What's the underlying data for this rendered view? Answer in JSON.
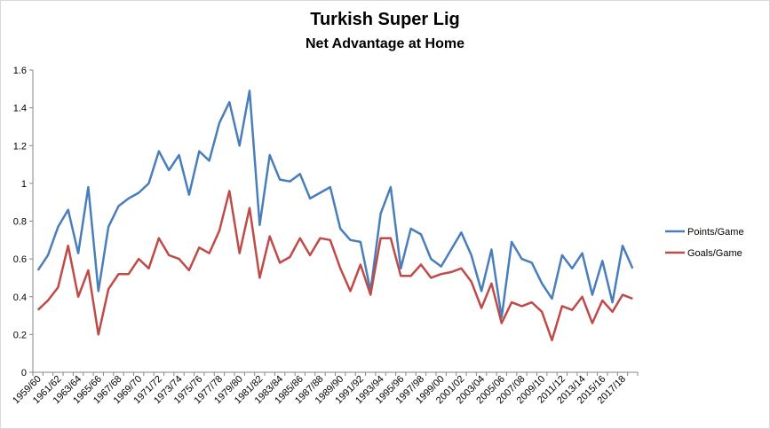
{
  "chart_data": {
    "type": "line",
    "title": "Turkish Super Lig",
    "subtitle": "Net Advantage at Home",
    "xlabel": "",
    "ylabel": "",
    "ylim": [
      0,
      1.6
    ],
    "yticks": [
      "0",
      "0.2",
      "0.4",
      "0.6",
      "0.8",
      "1",
      "1.2",
      "1.4",
      "1.6"
    ],
    "grid": false,
    "legend_position": "right",
    "x": [
      "1959/60",
      "1960/61",
      "1961/62",
      "1962/63",
      "1963/64",
      "1964/65",
      "1965/66",
      "1966/67",
      "1967/68",
      "1968/69",
      "1969/70",
      "1970/71",
      "1971/72",
      "1972/73",
      "1973/74",
      "1974/75",
      "1975/76",
      "1976/77",
      "1977/78",
      "1978/79",
      "1979/80",
      "1980/81",
      "1981/82",
      "1982/83",
      "1983/84",
      "1984/85",
      "1985/86",
      "1986/87",
      "1987/88",
      "1988/89",
      "1989/90",
      "1990/91",
      "1991/92",
      "1992/93",
      "1993/94",
      "1994/95",
      "1995/96",
      "1996/97",
      "1997/98",
      "1998/99",
      "1999/00",
      "2000/01",
      "2001/02",
      "2002/03",
      "2003/04",
      "2004/05",
      "2005/06",
      "2006/07",
      "2007/08",
      "2008/09",
      "2009/10",
      "2010/11",
      "2011/12",
      "2012/13",
      "2013/14",
      "2014/15",
      "2015/16",
      "2016/17",
      "2017/18",
      "2018/19"
    ],
    "x_tick_labels": [
      "1959/60",
      "1961/62",
      "1963/64",
      "1965/66",
      "1967/68",
      "1969/70",
      "1971/72",
      "1973/74",
      "1975/76",
      "1977/78",
      "1979/80",
      "1981/82",
      "1983/84",
      "1985/86",
      "1987/88",
      "1989/90",
      "1991/92",
      "1993/94",
      "1995/96",
      "1997/98",
      "1999/00",
      "2001/02",
      "2003/04",
      "2005/06",
      "2007/08",
      "2009/10",
      "2011/12",
      "2013/14",
      "2015/16",
      "2017/18"
    ],
    "series": [
      {
        "name": "Points/Game",
        "color": "#4a7ebb",
        "values": [
          0.54,
          0.62,
          0.77,
          0.86,
          0.63,
          0.98,
          0.43,
          0.77,
          0.88,
          0.92,
          0.95,
          1.0,
          1.17,
          1.07,
          1.15,
          0.94,
          1.17,
          1.12,
          1.32,
          1.43,
          1.2,
          1.49,
          0.78,
          1.15,
          1.02,
          1.01,
          1.05,
          0.92,
          0.95,
          0.98,
          0.76,
          0.7,
          0.69,
          0.43,
          0.84,
          0.98,
          0.55,
          0.76,
          0.73,
          0.6,
          0.56,
          0.65,
          0.74,
          0.62,
          0.43,
          0.65,
          0.29,
          0.69,
          0.6,
          0.58,
          0.47,
          0.39,
          0.62,
          0.55,
          0.63,
          0.41,
          0.59,
          0.37,
          0.67,
          0.55
        ]
      },
      {
        "name": "Goals/Game",
        "color": "#be4b48",
        "values": [
          0.33,
          0.38,
          0.45,
          0.67,
          0.4,
          0.54,
          0.2,
          0.44,
          0.52,
          0.52,
          0.6,
          0.55,
          0.71,
          0.62,
          0.6,
          0.54,
          0.66,
          0.63,
          0.75,
          0.96,
          0.63,
          0.87,
          0.5,
          0.72,
          0.58,
          0.61,
          0.71,
          0.62,
          0.71,
          0.7,
          0.55,
          0.43,
          0.57,
          0.41,
          0.71,
          0.71,
          0.51,
          0.51,
          0.57,
          0.5,
          0.52,
          0.53,
          0.55,
          0.48,
          0.34,
          0.47,
          0.26,
          0.37,
          0.35,
          0.37,
          0.32,
          0.17,
          0.35,
          0.33,
          0.4,
          0.26,
          0.38,
          0.32,
          0.41,
          0.39
        ]
      }
    ]
  }
}
